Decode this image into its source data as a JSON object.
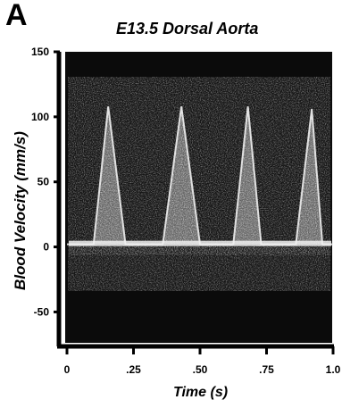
{
  "panel_letter": "A",
  "chart_data": {
    "type": "line",
    "title": "E13.5 Dorsal Aorta",
    "xlabel": "Time (s)",
    "ylabel": "Blood Velocity (mm/s)",
    "xlim": [
      0,
      1.0
    ],
    "ylim": [
      -60,
      150
    ],
    "xticks": [
      {
        "value": 0,
        "label": "0"
      },
      {
        "value": 0.25,
        "label": ".25"
      },
      {
        "value": 0.5,
        "label": ".50"
      },
      {
        "value": 0.75,
        "label": ".75"
      },
      {
        "value": 1.0,
        "label": "1.0"
      }
    ],
    "yticks": [
      {
        "value": 150,
        "label": "150"
      },
      {
        "value": 100,
        "label": "100"
      },
      {
        "value": 50,
        "label": "50"
      },
      {
        "value": 0,
        "label": "0"
      },
      {
        "value": -50,
        "label": "-50"
      }
    ],
    "grid": false,
    "series": [
      {
        "x": [
          0.0,
          0.04,
          0.1,
          0.155,
          0.22,
          0.3,
          0.36,
          0.43,
          0.5,
          0.58,
          0.625,
          0.68,
          0.73,
          0.79,
          0.86,
          0.92,
          0.96,
          1.0
        ],
        "y": [
          2,
          2,
          2,
          108,
          2,
          2,
          2,
          108,
          2,
          2,
          2,
          108,
          2,
          2,
          2,
          106,
          2,
          2
        ]
      }
    ],
    "colors": {
      "background": "#0b0b0b",
      "signal": "#f0f0f0",
      "noise": "#5a5a5a"
    }
  }
}
